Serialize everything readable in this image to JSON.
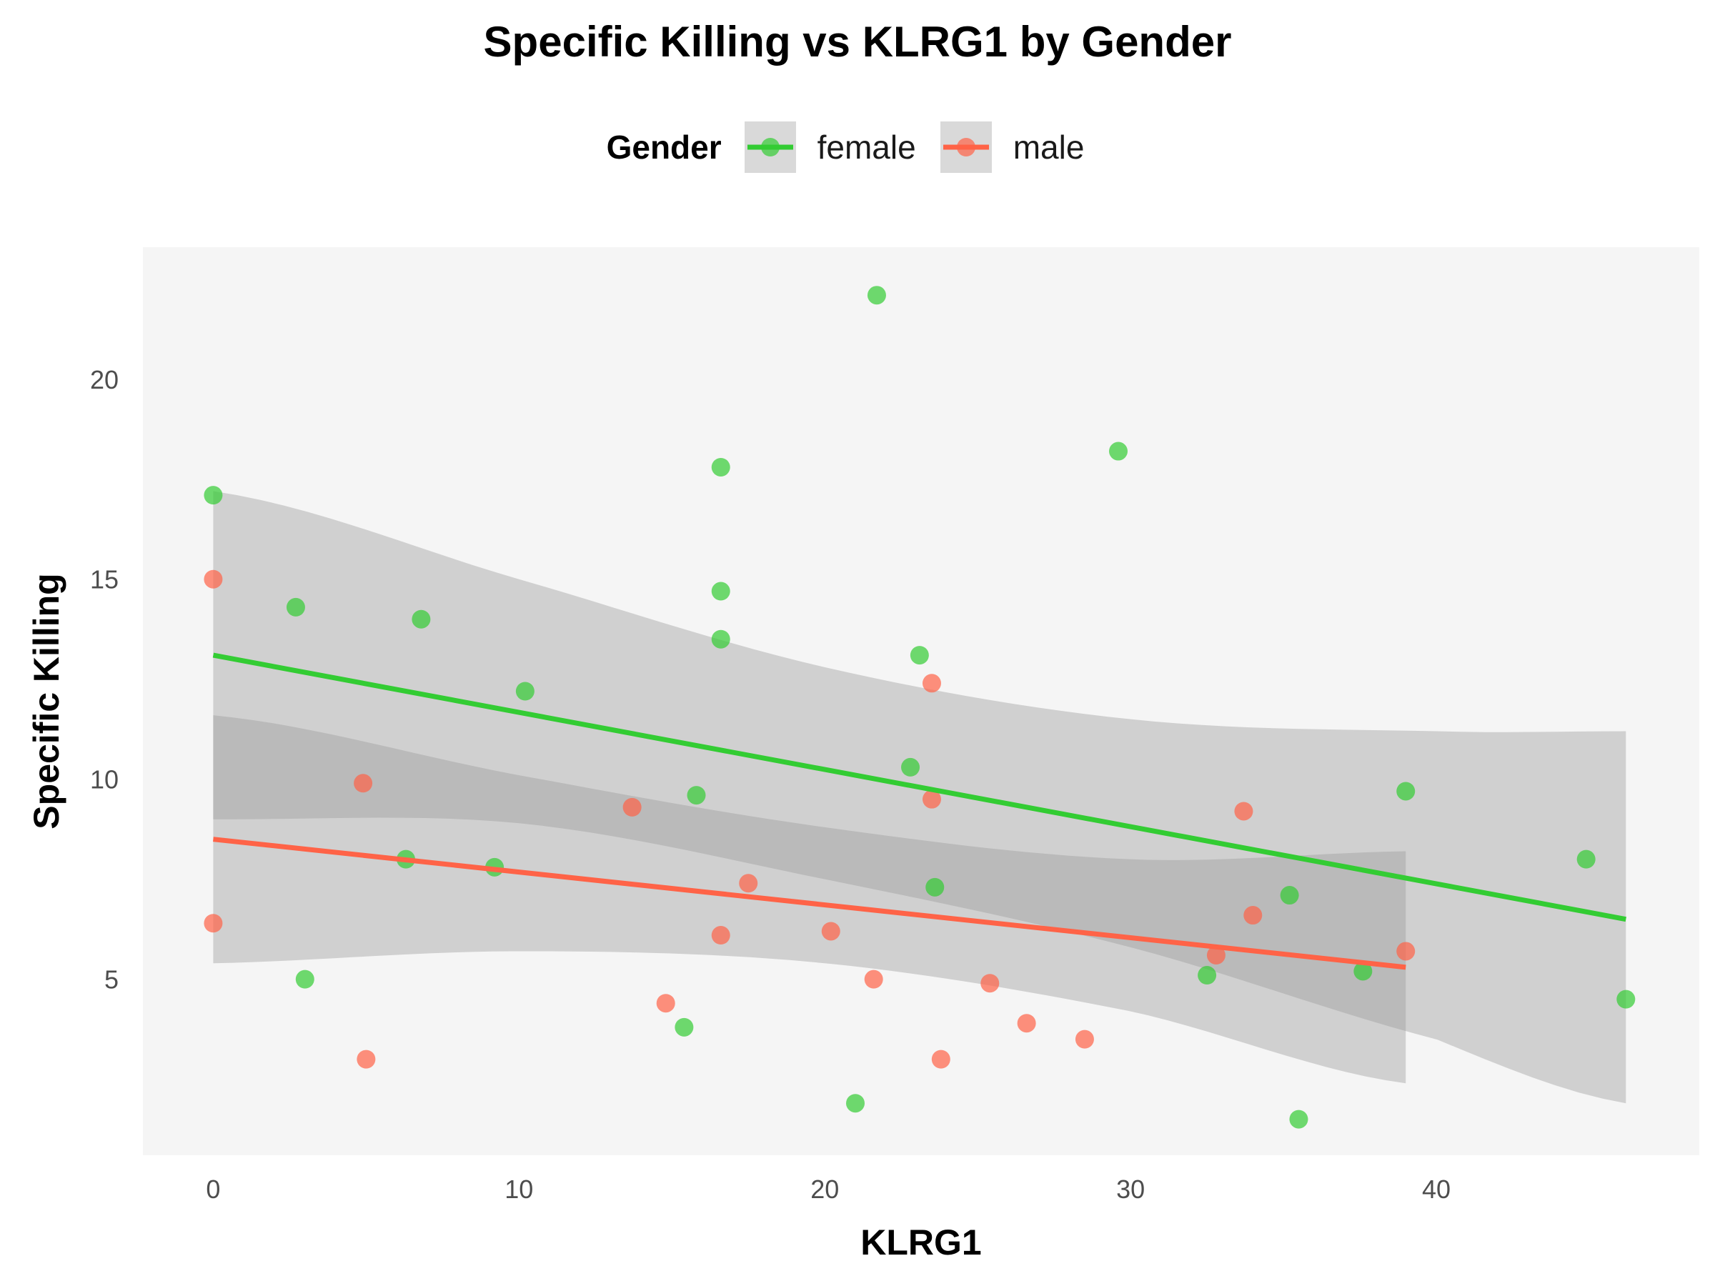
{
  "chart_data": {
    "type": "scatter",
    "title": "Specific Killing vs KLRG1 by Gender",
    "xlabel": "KLRG1",
    "ylabel": "Specific Killing",
    "xlim": [
      -2.3,
      48.6
    ],
    "ylim": [
      0.6,
      23.3
    ],
    "x_ticks": [
      0,
      10,
      20,
      30,
      40
    ],
    "y_ticks": [
      5,
      10,
      15,
      20
    ],
    "legend": {
      "title": "Gender",
      "position": "top"
    },
    "background": "#f5f5f5",
    "grid": false,
    "series": [
      {
        "name": "female",
        "color": "#33cc33",
        "points": [
          [
            0,
            17.1
          ],
          [
            2.7,
            14.3
          ],
          [
            3.0,
            5.0
          ],
          [
            6.3,
            8.0
          ],
          [
            6.8,
            14.0
          ],
          [
            9.2,
            7.8
          ],
          [
            10.2,
            12.2
          ],
          [
            15.4,
            3.8
          ],
          [
            15.8,
            9.6
          ],
          [
            16.6,
            17.8
          ],
          [
            16.6,
            14.7
          ],
          [
            16.6,
            13.5
          ],
          [
            21.0,
            1.9
          ],
          [
            21.7,
            22.1
          ],
          [
            22.8,
            10.3
          ],
          [
            23.1,
            13.1
          ],
          [
            23.6,
            7.3
          ],
          [
            29.6,
            18.2
          ],
          [
            32.5,
            5.1
          ],
          [
            35.2,
            7.1
          ],
          [
            35.5,
            1.5
          ],
          [
            37.6,
            5.2
          ],
          [
            39.0,
            9.7
          ],
          [
            44.9,
            8.0
          ],
          [
            46.2,
            4.5
          ]
        ],
        "fit": {
          "x": [
            0,
            46.2
          ],
          "y": [
            13.1,
            6.5
          ]
        },
        "ci": {
          "x": [
            0,
            10,
            20,
            30,
            40,
            46.2
          ],
          "upper": [
            17.2,
            15.0,
            12.8,
            11.5,
            11.2,
            11.2
          ],
          "lower": [
            9.0,
            8.9,
            7.5,
            5.8,
            3.5,
            1.9
          ]
        }
      },
      {
        "name": "male",
        "color": "#ff6347",
        "points": [
          [
            0,
            15.0
          ],
          [
            0,
            6.4
          ],
          [
            4.9,
            9.9
          ],
          [
            5.0,
            3.0
          ],
          [
            13.7,
            9.3
          ],
          [
            14.8,
            4.4
          ],
          [
            16.6,
            6.1
          ],
          [
            17.5,
            7.4
          ],
          [
            20.2,
            6.2
          ],
          [
            21.6,
            5.0
          ],
          [
            23.5,
            12.4
          ],
          [
            23.5,
            9.5
          ],
          [
            23.8,
            3.0
          ],
          [
            25.4,
            4.9
          ],
          [
            26.6,
            3.9
          ],
          [
            28.5,
            3.5
          ],
          [
            32.8,
            5.6
          ],
          [
            33.7,
            9.2
          ],
          [
            34.0,
            6.6
          ],
          [
            39.0,
            5.7
          ]
        ],
        "fit": {
          "x": [
            0,
            39.0
          ],
          "y": [
            8.5,
            5.3
          ]
        },
        "ci": {
          "x": [
            0,
            10,
            20,
            30,
            39.0
          ],
          "upper": [
            11.6,
            10.1,
            8.8,
            8.0,
            8.2
          ],
          "lower": [
            5.4,
            5.7,
            5.4,
            4.2,
            2.4
          ]
        }
      }
    ]
  }
}
